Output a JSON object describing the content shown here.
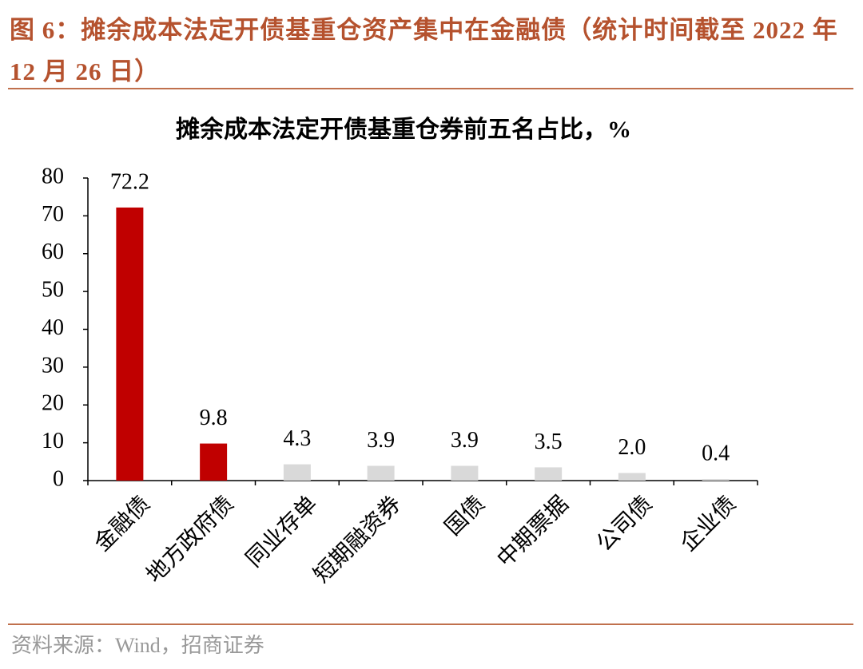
{
  "caption": "图 6：摊余成本法定开债基重仓资产集中在金融债（统计时间截至 2022 年 12 月 26 日）",
  "chart_data": {
    "type": "bar",
    "title": "摊余成本法定开债基重仓券前五名占比，%",
    "categories": [
      "金融债",
      "地方政府债",
      "同业存单",
      "短期融资券",
      "国债",
      "中期票据",
      "公司债",
      "企业债"
    ],
    "values": [
      72.2,
      9.8,
      4.3,
      3.9,
      3.9,
      3.5,
      2.0,
      0.4
    ],
    "value_labels": [
      "72.2",
      "9.8",
      "4.3",
      "3.9",
      "3.9",
      "3.5",
      "2.0",
      "0.4"
    ],
    "colors": [
      "#c00000",
      "#c00000",
      "#d9d9d9",
      "#d9d9d9",
      "#d9d9d9",
      "#d9d9d9",
      "#d9d9d9",
      "#d9d9d9"
    ],
    "ylim": [
      0,
      80
    ],
    "yticks": [
      0,
      10,
      20,
      30,
      40,
      50,
      60,
      70,
      80
    ],
    "grid": false
  },
  "source": "资料来源：Wind，招商证券"
}
